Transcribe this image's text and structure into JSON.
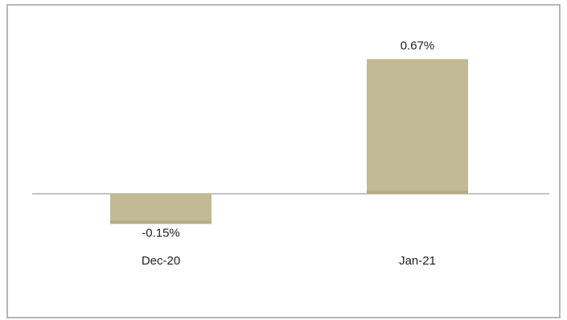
{
  "chart_data": {
    "type": "bar",
    "categories": [
      "Dec-20",
      "Jan-21"
    ],
    "values": [
      -0.15,
      0.67
    ],
    "value_labels": [
      "-0.15%",
      "0.67%"
    ],
    "title": "",
    "xlabel": "",
    "ylabel": "",
    "ylim": [
      -0.25,
      0.8
    ],
    "grid": false,
    "legend": "none",
    "colors": {
      "bar": "#c2ba94",
      "bar_shadow": "#b4ac87",
      "axis": "#a0a0a0",
      "frame": "#9e9e9e",
      "text": "#1f1f1f"
    }
  }
}
